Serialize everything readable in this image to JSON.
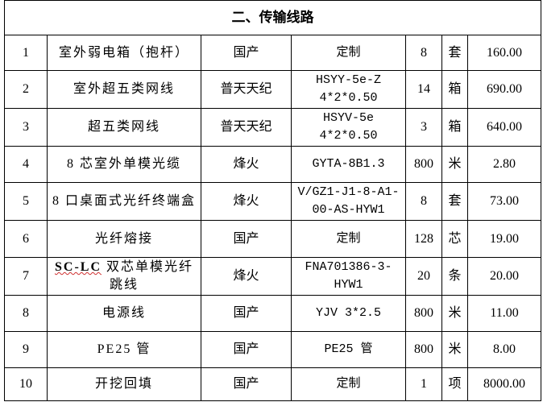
{
  "section_title": "二、传输线路",
  "rows": [
    {
      "no": "1",
      "name": "室外弱电箱（抱杆）",
      "brand": "国产",
      "model": "定制",
      "qty": "8",
      "unit": "套",
      "price": "160.00"
    },
    {
      "no": "2",
      "name": "室外超五类网线",
      "brand": "普天天纪",
      "model": "HSYY-5e-Z 4*2*0.50",
      "qty": "14",
      "unit": "箱",
      "price": "690.00"
    },
    {
      "no": "3",
      "name": "超五类网线",
      "brand": "普天天纪",
      "model": "HSYV-5e 4*2*0.50",
      "qty": "3",
      "unit": "箱",
      "price": "640.00"
    },
    {
      "no": "4",
      "name": "8 芯室外单模光缆",
      "brand": "烽火",
      "model": "GYTA-8B1.3",
      "qty": "800",
      "unit": "米",
      "price": "2.80"
    },
    {
      "no": "5",
      "name": "8 口桌面式光纤终端盒",
      "brand": "烽火",
      "model": "V/GZ1-J1-8-A1-00-AS-HYW1",
      "qty": "8",
      "unit": "套",
      "price": "73.00"
    },
    {
      "no": "6",
      "name": "光纤熔接",
      "brand": "国产",
      "model": "定制",
      "qty": "128",
      "unit": "芯",
      "price": "19.00"
    },
    {
      "no": "7",
      "name_prefix": "SC-LC",
      "name": " 双芯单模光纤跳线",
      "brand": "烽火",
      "model": "FNA701386-3-HYW1",
      "qty": "20",
      "unit": "条",
      "price": "20.00"
    },
    {
      "no": "8",
      "name": "电源线",
      "brand": "国产",
      "model": "YJV 3*2.5",
      "qty": "800",
      "unit": "米",
      "price": "11.00"
    },
    {
      "no": "9",
      "name": "PE25 管",
      "brand": "国产",
      "model": "PE25 管",
      "qty": "800",
      "unit": "米",
      "price": "8.00"
    },
    {
      "no": "10",
      "name": "开挖回填",
      "brand": "国产",
      "model": "定制",
      "qty": "1",
      "unit": "项",
      "price": "8000.00"
    }
  ]
}
